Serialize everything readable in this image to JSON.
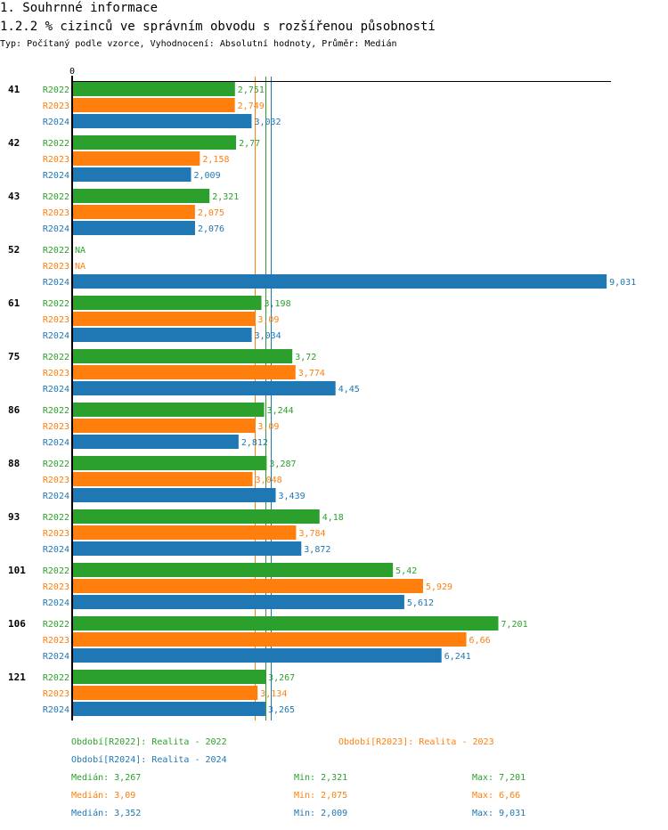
{
  "header": {
    "section": "1. Souhrnné informace",
    "title": "1.2.2 % cizinců ve správním obvodu s rozšířenou působností",
    "subtitle": "Typ: Počítaný podle vzorce, Vyhodnocení: Absolutní hodnoty, Průměr: Medián"
  },
  "colors": {
    "R2022": "#2ca02c",
    "R2023": "#ff7f0e",
    "R2024": "#1f77b4",
    "axis": "#000000"
  },
  "chart_data": {
    "type": "bar",
    "orientation": "horizontal",
    "title": "1.2.2 % cizinců ve správním obvodu s rozšířenou působností",
    "xlabel": "",
    "ylabel": "",
    "x_tick_labels": [
      "0"
    ],
    "xlim": [
      0,
      9.031
    ],
    "grid": false,
    "categories": [
      "41",
      "42",
      "43",
      "52",
      "61",
      "75",
      "86",
      "88",
      "93",
      "101",
      "106",
      "121"
    ],
    "series": [
      {
        "name": "R2022",
        "values": [
          2.751,
          2.77,
          2.321,
          null,
          3.198,
          3.72,
          3.244,
          3.287,
          4.18,
          5.42,
          7.201,
          3.267
        ],
        "labels": [
          "2,751",
          "2,77",
          "2,321",
          "NA",
          "3,198",
          "3,72",
          "3,244",
          "3,287",
          "4,18",
          "5,42",
          "7,201",
          "3,267"
        ]
      },
      {
        "name": "R2023",
        "values": [
          2.749,
          2.158,
          2.075,
          null,
          3.09,
          3.774,
          3.09,
          3.048,
          3.784,
          5.929,
          6.66,
          3.134
        ],
        "labels": [
          "2,749",
          "2,158",
          "2,075",
          "NA",
          "3,09",
          "3,774",
          "3,09",
          "3,048",
          "3,784",
          "5,929",
          "6,66",
          "3,134"
        ]
      },
      {
        "name": "R2024",
        "values": [
          3.032,
          2.009,
          2.076,
          9.031,
          3.034,
          4.45,
          2.812,
          3.439,
          3.872,
          5.612,
          6.241,
          3.265
        ],
        "labels": [
          "3,032",
          "2,009",
          "2,076",
          "9,031",
          "3,034",
          "4,45",
          "2,812",
          "3,439",
          "3,872",
          "5,612",
          "6,241",
          "3,265"
        ]
      }
    ],
    "reference_lines": [
      {
        "series": "R2022",
        "type": "median",
        "value": 3.267
      },
      {
        "series": "R2023",
        "type": "median",
        "value": 3.09
      },
      {
        "series": "R2024",
        "type": "median",
        "value": 3.352
      }
    ],
    "legend": {
      "placement": "bottom",
      "entries": [
        {
          "series": "R2022",
          "label": "Období[R2022]: Realita - 2022"
        },
        {
          "series": "R2023",
          "label": "Období[R2023]: Realita - 2023"
        },
        {
          "series": "R2024",
          "label": "Období[R2024]: Realita - 2024"
        }
      ]
    },
    "stats": [
      {
        "series": "R2022",
        "median": "Medián: 3,267",
        "min": "Min: 2,321",
        "max": "Max: 7,201"
      },
      {
        "series": "R2023",
        "median": "Medián: 3,09",
        "min": "Min: 2,075",
        "max": "Max: 6,66"
      },
      {
        "series": "R2024",
        "median": "Medián: 3,352",
        "min": "Min: 2,009",
        "max": "Max: 9,031"
      }
    ]
  }
}
